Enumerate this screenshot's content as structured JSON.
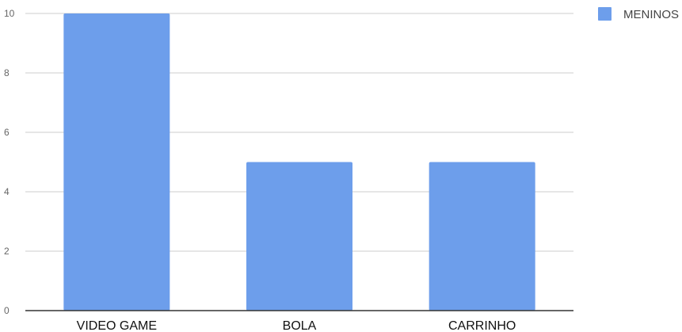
{
  "chart_data": {
    "type": "bar",
    "categories": [
      "VIDEO GAME",
      "BOLA",
      "CARRINHO"
    ],
    "series": [
      {
        "name": "MENINOS",
        "values": [
          10,
          5,
          5
        ],
        "color": "#6d9eeb"
      }
    ],
    "ylim": [
      0,
      10
    ],
    "yticks": [
      0,
      2,
      4,
      6,
      8,
      10
    ],
    "grid": true,
    "legend_position": "top-right"
  }
}
